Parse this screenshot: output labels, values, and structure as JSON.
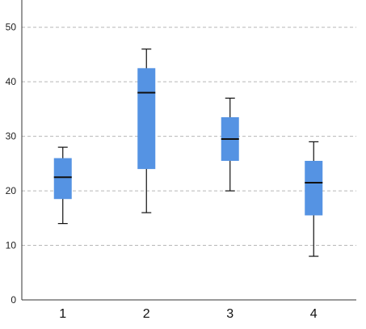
{
  "chart_data": {
    "type": "box",
    "categories": [
      "1",
      "2",
      "3",
      "4"
    ],
    "boxes": [
      {
        "category": "1",
        "whisker_low": 14,
        "q1": 18.5,
        "median": 22.5,
        "q3": 26,
        "whisker_high": 28
      },
      {
        "category": "2",
        "whisker_low": 16,
        "q1": 24,
        "median": 38,
        "q3": 42.5,
        "whisker_high": 46
      },
      {
        "category": "3",
        "whisker_low": 20,
        "q1": 25.5,
        "median": 29.5,
        "q3": 33.5,
        "whisker_high": 37
      },
      {
        "category": "4",
        "whisker_low": 8,
        "q1": 15.5,
        "median": 21.5,
        "q3": 25.5,
        "whisker_high": 29
      }
    ],
    "yticks": [
      0,
      10,
      20,
      30,
      40,
      50
    ],
    "ylim": [
      0,
      55
    ],
    "grid": "horizontal-dashed",
    "box_color": "#5593e3",
    "median_color": "#111111",
    "whisker_color": "#111111",
    "grid_color": "#b8b8b8",
    "axis_color": "#333333"
  }
}
